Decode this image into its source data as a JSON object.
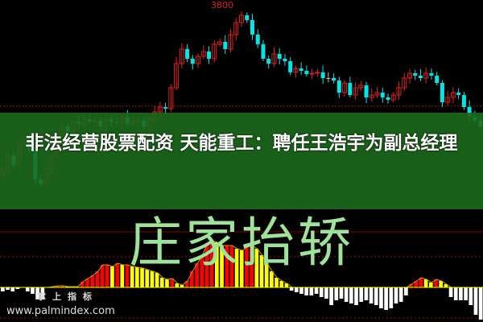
{
  "headline": "非法经营股票配资 天能重工：聘任王浩宇为副总经理",
  "watermark_text": "庄家抬轿",
  "brand": {
    "cn": "掌上指标",
    "url": "www.palmindex.com"
  },
  "colors": {
    "up": "#e02020",
    "down": "#00e5e5",
    "flat": "#bbbbbb",
    "banner": "#1c681c",
    "hist_up": "#ff0000",
    "hist_down": "#ffff00",
    "hist_neg": "#ffffff",
    "ref_line": "#8b0000"
  },
  "chart_data": [
    {
      "type": "candlestick",
      "title": "",
      "peak_label": "3800",
      "closes": [
        3470,
        3500,
        3480,
        3520,
        3540,
        3510,
        3450,
        3440,
        3470,
        3500,
        3530,
        3560,
        3550,
        3570,
        3565,
        3575,
        3570,
        3572,
        3560,
        3575,
        3570,
        3568,
        3580,
        3565,
        3570,
        3572,
        3560,
        3575,
        3590,
        3600,
        3597,
        3640,
        3690,
        3720,
        3700,
        3690,
        3705,
        3715,
        3700,
        3730,
        3735,
        3720,
        3750,
        3775,
        3790,
        3780,
        3750,
        3730,
        3700,
        3690,
        3710,
        3700,
        3695,
        3672,
        3680,
        3675,
        3668,
        3670,
        3672,
        3660,
        3660,
        3655,
        3630,
        3650,
        3625,
        3640,
        3645,
        3620,
        3625,
        3630,
        3620,
        3615,
        3625,
        3640,
        3660,
        3670,
        3665,
        3660,
        3670,
        3665,
        3650,
        3610,
        3620,
        3630,
        3625,
        3600,
        3580,
        3572,
        3560
      ],
      "reference_line": 3602
    },
    {
      "type": "bar",
      "title": "",
      "values": [
        -5,
        -3,
        -5,
        -2,
        0,
        -5,
        -8,
        -15,
        -15,
        0,
        1,
        2,
        2,
        1,
        1,
        1,
        7,
        11,
        15,
        20,
        28,
        28,
        26,
        30,
        28,
        28,
        26,
        25,
        24,
        22,
        20,
        18,
        12,
        10,
        11,
        5,
        3,
        8,
        20,
        30,
        40,
        55,
        58,
        56,
        52,
        52,
        52,
        48,
        46,
        50,
        52,
        48,
        40,
        30,
        20,
        12,
        8,
        5,
        -4,
        -6,
        -8,
        -10,
        -10,
        -8,
        -12,
        -14,
        -22,
        -16,
        -14,
        -18,
        -20,
        -22,
        -18,
        -16,
        -20,
        -22,
        -26,
        -28,
        -26,
        -20,
        -18,
        -10,
        4,
        8,
        12,
        10,
        6,
        10,
        8,
        4,
        -12,
        -16,
        -16,
        -16,
        -22,
        -34,
        -40
      ]
    }
  ]
}
